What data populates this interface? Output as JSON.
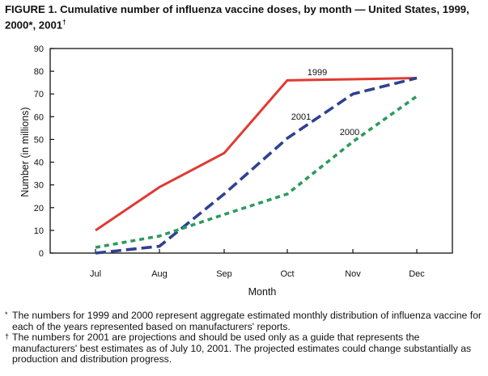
{
  "chart_data": {
    "type": "line",
    "title": "FIGURE 1. Cumulative number of influenza vaccine doses, by month — United States, 1999, 2000*, 2001",
    "title_mark": "†",
    "xlabel": "Month",
    "ylabel": "Number (in millions)",
    "categories": [
      "Jul",
      "Aug",
      "Sep",
      "Oct",
      "Nov",
      "Dec"
    ],
    "ylim": [
      0,
      90
    ],
    "yticks": [
      0,
      10,
      20,
      30,
      40,
      50,
      60,
      70,
      80,
      90
    ],
    "grid": false,
    "legend": "inline labels",
    "series": [
      {
        "name": "1999",
        "color": "#e03a32",
        "style": "solid",
        "values": [
          10,
          29,
          44,
          76,
          76.5,
          77
        ]
      },
      {
        "name": "2001",
        "color": "#2f4190",
        "style": "long-dash",
        "values": [
          0,
          3,
          26,
          50.5,
          70,
          77
        ]
      },
      {
        "name": "2000",
        "color": "#2e9a5e",
        "style": "short-dash",
        "values": [
          2.5,
          7.5,
          17,
          26,
          49,
          69
        ]
      }
    ]
  },
  "footnotes": [
    {
      "mark": "*",
      "text": "The numbers for 1999 and 2000 represent aggregate estimated monthly distribution of influenza vaccine for each of the years represented based on manufacturers' reports."
    },
    {
      "mark": "†",
      "text": "The numbers for 2001 are projections and should be used only as a guide that represents the manufacturers' best estimates as of July 10, 2001. The projected estimates could change substantially as production and distribution progress."
    }
  ]
}
